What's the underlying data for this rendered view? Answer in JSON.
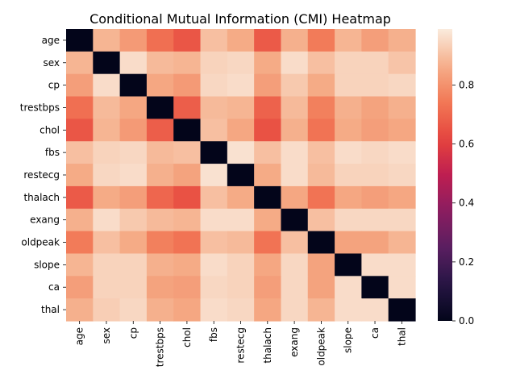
{
  "chart_data": {
    "type": "heatmap",
    "title": "Conditional Mutual Information (CMI) Heatmap",
    "xlabel": "",
    "ylabel": "",
    "rows": [
      "age",
      "sex",
      "cp",
      "trestbps",
      "chol",
      "fbs",
      "restecg",
      "thalach",
      "exang",
      "oldpeak",
      "slope",
      "ca",
      "thal"
    ],
    "cols": [
      "age",
      "sex",
      "cp",
      "trestbps",
      "chol",
      "fbs",
      "restecg",
      "thalach",
      "exang",
      "oldpeak",
      "slope",
      "ca",
      "thal"
    ],
    "values": [
      [
        0.0,
        0.88,
        0.82,
        0.72,
        0.66,
        0.9,
        0.86,
        0.67,
        0.87,
        0.75,
        0.88,
        0.83,
        0.87
      ],
      [
        0.88,
        0.0,
        0.96,
        0.89,
        0.88,
        0.94,
        0.95,
        0.86,
        0.96,
        0.9,
        0.94,
        0.94,
        0.91
      ],
      [
        0.83,
        0.96,
        0.0,
        0.85,
        0.82,
        0.95,
        0.96,
        0.83,
        0.92,
        0.86,
        0.94,
        0.94,
        0.95
      ],
      [
        0.72,
        0.89,
        0.85,
        0.0,
        0.68,
        0.89,
        0.88,
        0.69,
        0.89,
        0.76,
        0.87,
        0.84,
        0.87
      ],
      [
        0.66,
        0.88,
        0.82,
        0.68,
        0.0,
        0.9,
        0.85,
        0.65,
        0.87,
        0.73,
        0.86,
        0.83,
        0.85
      ],
      [
        0.9,
        0.94,
        0.95,
        0.89,
        0.9,
        0.0,
        0.97,
        0.9,
        0.96,
        0.9,
        0.96,
        0.95,
        0.96
      ],
      [
        0.86,
        0.95,
        0.96,
        0.87,
        0.84,
        0.97,
        0.0,
        0.86,
        0.96,
        0.89,
        0.94,
        0.94,
        0.95
      ],
      [
        0.67,
        0.86,
        0.83,
        0.7,
        0.65,
        0.9,
        0.86,
        0.0,
        0.85,
        0.73,
        0.85,
        0.83,
        0.85
      ],
      [
        0.87,
        0.96,
        0.92,
        0.89,
        0.88,
        0.96,
        0.96,
        0.86,
        0.0,
        0.9,
        0.95,
        0.95,
        0.95
      ],
      [
        0.75,
        0.9,
        0.86,
        0.76,
        0.73,
        0.9,
        0.89,
        0.73,
        0.9,
        0.0,
        0.84,
        0.84,
        0.88
      ],
      [
        0.88,
        0.94,
        0.94,
        0.87,
        0.86,
        0.96,
        0.94,
        0.85,
        0.95,
        0.84,
        0.0,
        0.96,
        0.96
      ],
      [
        0.83,
        0.94,
        0.94,
        0.84,
        0.83,
        0.95,
        0.94,
        0.83,
        0.95,
        0.84,
        0.96,
        0.0,
        0.96
      ],
      [
        0.87,
        0.93,
        0.95,
        0.87,
        0.85,
        0.96,
        0.95,
        0.85,
        0.95,
        0.88,
        0.96,
        0.96,
        0.0
      ]
    ],
    "colorbar": {
      "min": 0.0,
      "max": 0.99,
      "ticks": [
        0.0,
        0.2,
        0.4,
        0.6,
        0.8
      ],
      "colormap": "rocket",
      "tick_labels": [
        "0.0",
        "0.2",
        "0.4",
        "0.6",
        "0.8"
      ]
    },
    "grid": false,
    "legend": "colorbar-right"
  }
}
